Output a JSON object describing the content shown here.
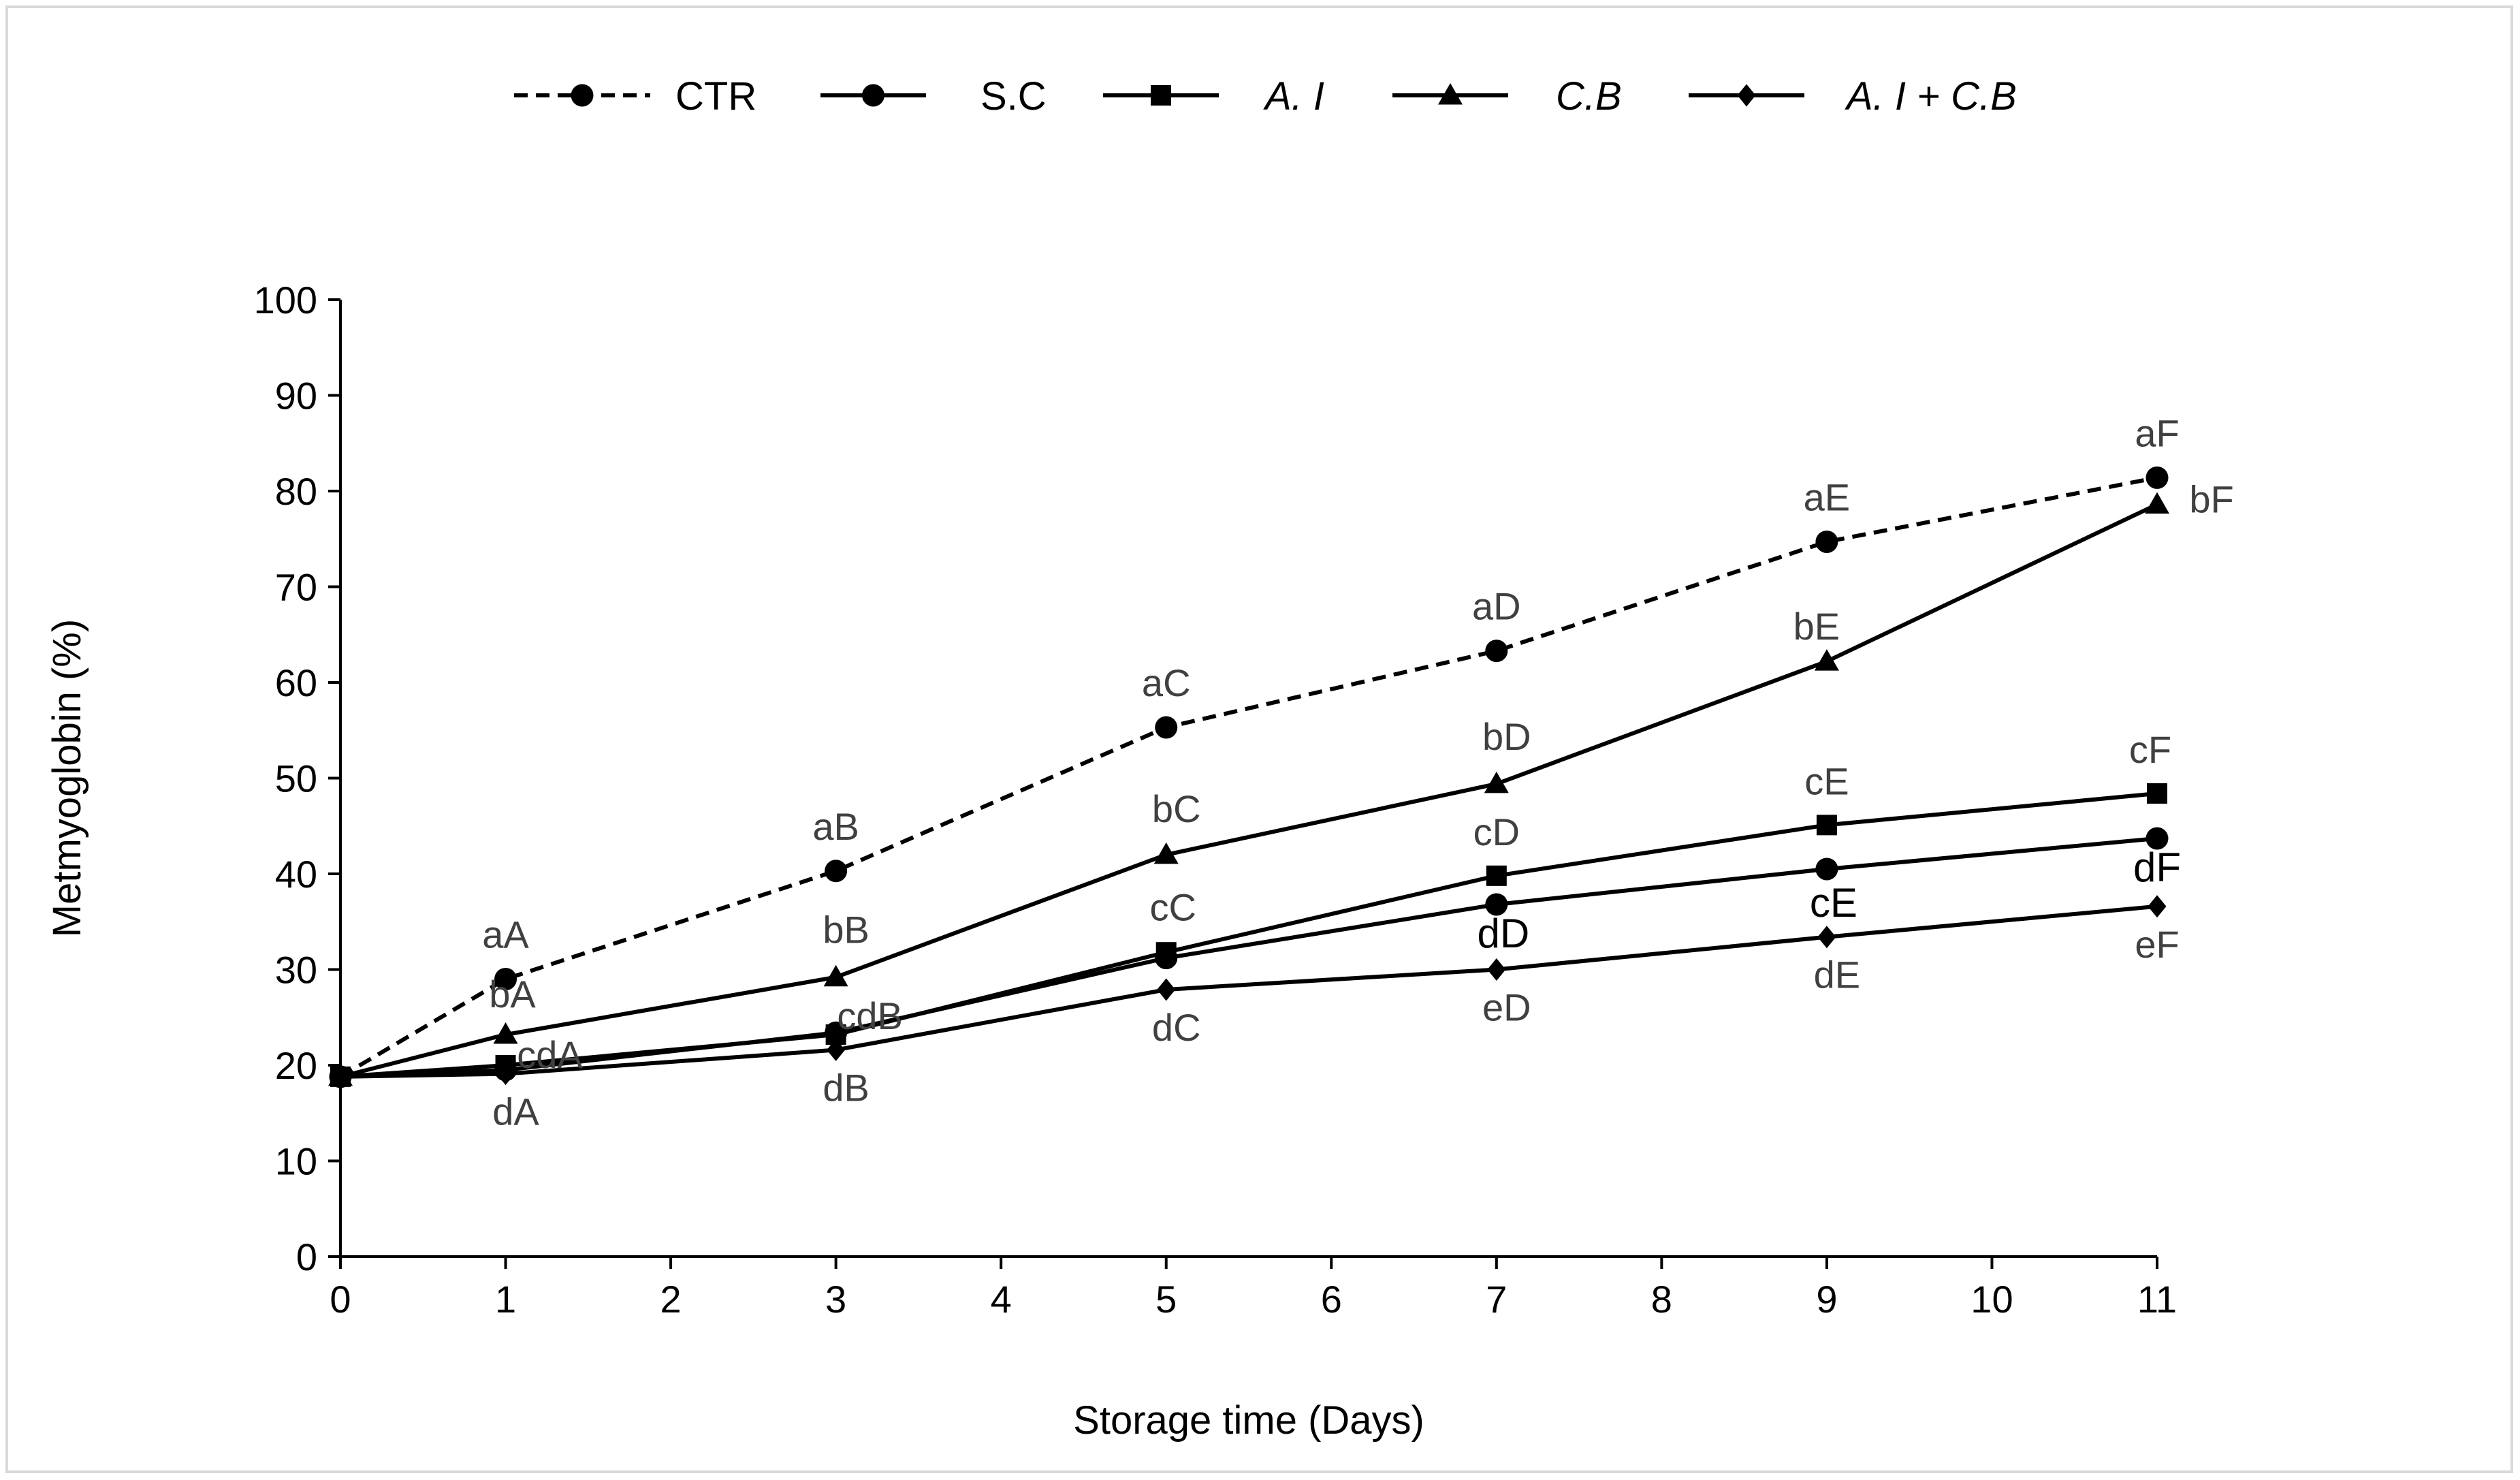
{
  "chart_data": {
    "type": "line",
    "title": "",
    "xlabel": "Storage time (Days)",
    "ylabel": "Metmyoglobin (%)",
    "xlim": [
      0,
      11
    ],
    "ylim": [
      0,
      100
    ],
    "x_ticks": [
      "0",
      "1",
      "2",
      "3",
      "4",
      "5",
      "6",
      "7",
      "8",
      "9",
      "10",
      "11"
    ],
    "y_ticks": [
      "0",
      "10",
      "20",
      "30",
      "40",
      "50",
      "60",
      "70",
      "80",
      "90",
      "100"
    ],
    "x": [
      0,
      1,
      3,
      5,
      7,
      9,
      11
    ],
    "legend_position": "top",
    "series": [
      {
        "name": "CTR",
        "style": "dashed",
        "marker": "circle",
        "italic": false,
        "values": [
          18.8,
          29.0,
          40.3,
          55.3,
          63.3,
          74.7,
          81.4
        ],
        "labels": [
          "",
          "aA",
          "aB",
          "aC",
          "aD",
          "aE",
          "aF"
        ]
      },
      {
        "name": "S.C",
        "style": "solid",
        "marker": "circle",
        "italic": false,
        "values": [
          18.8,
          19.5,
          23.4,
          31.2,
          36.8,
          40.5,
          43.7
        ],
        "labels": [
          "",
          "cdA",
          "cdB",
          "cC",
          "dD",
          "cE",
          "dF"
        ]
      },
      {
        "name": "A. I",
        "style": "solid",
        "marker": "square",
        "italic": true,
        "values": [
          18.8,
          20.0,
          23.2,
          31.8,
          39.8,
          45.1,
          48.4
        ],
        "labels": [
          "",
          "",
          "",
          "",
          "cD",
          "cE",
          "cF"
        ]
      },
      {
        "name": "C.B",
        "style": "solid",
        "marker": "triangle",
        "italic": true,
        "values": [
          18.8,
          23.2,
          29.2,
          42.0,
          49.4,
          62.2,
          78.6
        ],
        "labels": [
          "",
          "bA",
          "bB",
          "bC",
          "bD",
          "bE",
          "bF"
        ]
      },
      {
        "name": "A. I + C.B",
        "style": "solid",
        "marker": "diamond",
        "italic": true,
        "values": [
          18.8,
          19.1,
          21.6,
          27.9,
          30.0,
          33.4,
          36.6
        ],
        "labels": [
          "",
          "dA",
          "dB",
          "dC",
          "eD",
          "dE",
          "eF"
        ]
      }
    ]
  }
}
